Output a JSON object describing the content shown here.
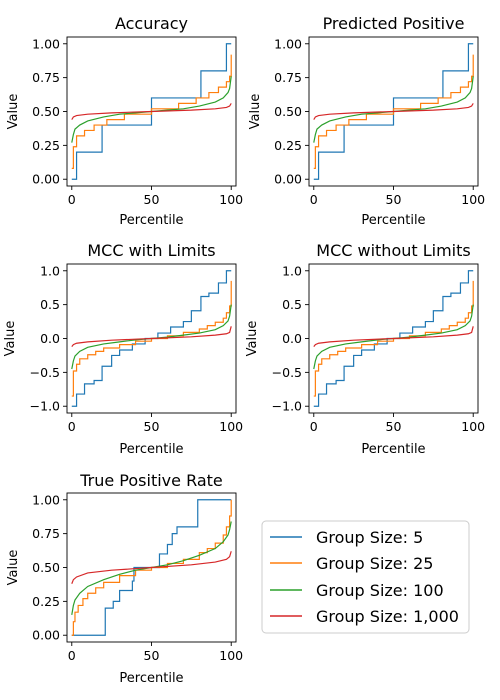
{
  "chart_data": [
    {
      "type": "line",
      "title": "Accuracy",
      "xlabel": "Percentile",
      "ylabel": "Value",
      "xlim": [
        -3,
        103
      ],
      "ylim": [
        -0.05,
        1.05
      ],
      "xticks": [
        0,
        50,
        100
      ],
      "xtick_labels": [
        "0",
        "50",
        "100"
      ],
      "yticks": [
        0.0,
        0.25,
        0.5,
        0.75,
        1.0
      ],
      "ytick_labels": [
        "0.00",
        "0.25",
        "0.50",
        "0.75",
        "1.00"
      ],
      "series": [
        {
          "name": "Group Size: 5",
          "color": "#1f77b4",
          "step": true,
          "x": [
            0,
            3,
            3,
            19,
            19,
            50,
            50,
            81,
            81,
            97,
            97,
            100
          ],
          "y": [
            0.0,
            0.0,
            0.2,
            0.2,
            0.4,
            0.4,
            0.6,
            0.6,
            0.8,
            0.8,
            1.0,
            1.0
          ]
        },
        {
          "name": "Group Size: 25",
          "color": "#ff7f0e",
          "step": true,
          "x": [
            0,
            1,
            3,
            8,
            14,
            22,
            33,
            50,
            67,
            78,
            86,
            92,
            97,
            99,
            100
          ],
          "y": [
            0.08,
            0.24,
            0.32,
            0.36,
            0.4,
            0.44,
            0.48,
            0.52,
            0.56,
            0.6,
            0.64,
            0.68,
            0.72,
            0.76,
            0.92
          ]
        },
        {
          "name": "Group Size: 100",
          "color": "#2ca02c",
          "step": false,
          "x": [
            0,
            1,
            2,
            5,
            10,
            20,
            30,
            40,
            50,
            60,
            70,
            80,
            90,
            95,
            98,
            99,
            100
          ],
          "y": [
            0.27,
            0.33,
            0.37,
            0.4,
            0.43,
            0.46,
            0.48,
            0.49,
            0.5,
            0.51,
            0.52,
            0.54,
            0.57,
            0.6,
            0.64,
            0.67,
            0.76
          ]
        },
        {
          "name": "Group Size: 1,000",
          "color": "#d62728",
          "step": false,
          "x": [
            0,
            1,
            3,
            10,
            25,
            50,
            75,
            90,
            97,
            99,
            100
          ],
          "y": [
            0.44,
            0.46,
            0.47,
            0.48,
            0.49,
            0.5,
            0.51,
            0.52,
            0.53,
            0.54,
            0.56
          ]
        }
      ]
    },
    {
      "type": "line",
      "title": "Predicted Positive",
      "xlabel": "Percentile",
      "ylabel": "Value",
      "xlim": [
        -3,
        103
      ],
      "ylim": [
        -0.05,
        1.05
      ],
      "xticks": [
        0,
        50,
        100
      ],
      "xtick_labels": [
        "0",
        "50",
        "100"
      ],
      "yticks": [
        0.0,
        0.25,
        0.5,
        0.75,
        1.0
      ],
      "ytick_labels": [
        "0.00",
        "0.25",
        "0.50",
        "0.75",
        "1.00"
      ],
      "series": [
        {
          "name": "Group Size: 5",
          "color": "#1f77b4",
          "step": true,
          "x": [
            0,
            3,
            3,
            19,
            19,
            50,
            50,
            81,
            81,
            97,
            97,
            100
          ],
          "y": [
            0.0,
            0.0,
            0.2,
            0.2,
            0.4,
            0.4,
            0.6,
            0.6,
            0.8,
            0.8,
            1.0,
            1.0
          ]
        },
        {
          "name": "Group Size: 25",
          "color": "#ff7f0e",
          "step": true,
          "x": [
            0,
            1,
            3,
            8,
            14,
            22,
            33,
            50,
            67,
            78,
            86,
            92,
            97,
            99,
            100
          ],
          "y": [
            0.08,
            0.24,
            0.32,
            0.36,
            0.4,
            0.44,
            0.48,
            0.52,
            0.56,
            0.6,
            0.64,
            0.68,
            0.72,
            0.76,
            0.92
          ]
        },
        {
          "name": "Group Size: 100",
          "color": "#2ca02c",
          "step": false,
          "x": [
            0,
            1,
            2,
            5,
            10,
            20,
            30,
            40,
            50,
            60,
            70,
            80,
            90,
            95,
            98,
            99,
            100
          ],
          "y": [
            0.27,
            0.33,
            0.37,
            0.4,
            0.43,
            0.46,
            0.48,
            0.49,
            0.5,
            0.51,
            0.52,
            0.54,
            0.57,
            0.6,
            0.64,
            0.67,
            0.76
          ]
        },
        {
          "name": "Group Size: 1,000",
          "color": "#d62728",
          "step": false,
          "x": [
            0,
            1,
            3,
            10,
            25,
            50,
            75,
            90,
            97,
            99,
            100
          ],
          "y": [
            0.44,
            0.46,
            0.47,
            0.48,
            0.49,
            0.5,
            0.51,
            0.52,
            0.53,
            0.54,
            0.56
          ]
        }
      ]
    },
    {
      "type": "line",
      "title": "MCC with Limits",
      "xlabel": "Percentile",
      "ylabel": "Value",
      "xlim": [
        -3,
        103
      ],
      "ylim": [
        -1.1,
        1.1
      ],
      "xticks": [
        0,
        50,
        100
      ],
      "xtick_labels": [
        "0",
        "50",
        "100"
      ],
      "yticks": [
        -1.0,
        -0.5,
        0.0,
        0.5,
        1.0
      ],
      "ytick_labels": [
        "−1.0",
        "−0.5",
        "0.0",
        "0.5",
        "1.0"
      ],
      "series": [
        {
          "name": "Group Size: 5",
          "color": "#1f77b4",
          "step": true,
          "x": [
            0,
            3,
            3,
            8,
            8,
            14,
            14,
            19,
            19,
            25,
            25,
            30,
            30,
            38,
            38,
            46,
            46,
            54,
            54,
            62,
            62,
            70,
            70,
            75,
            75,
            81,
            81,
            86,
            86,
            92,
            92,
            97,
            97,
            100
          ],
          "y": [
            -1.0,
            -1.0,
            -0.82,
            -0.82,
            -0.67,
            -0.67,
            -0.62,
            -0.62,
            -0.41,
            -0.41,
            -0.25,
            -0.25,
            -0.17,
            -0.17,
            -0.08,
            -0.08,
            0.0,
            0.0,
            0.08,
            0.08,
            0.17,
            0.17,
            0.25,
            0.25,
            0.41,
            0.41,
            0.62,
            0.62,
            0.67,
            0.67,
            0.82,
            0.82,
            1.0,
            1.0
          ]
        },
        {
          "name": "Group Size: 25",
          "color": "#ff7f0e",
          "step": true,
          "x": [
            0,
            1,
            3,
            5,
            10,
            15,
            20,
            30,
            40,
            50,
            60,
            70,
            80,
            85,
            90,
            95,
            97,
            99,
            100
          ],
          "y": [
            -0.85,
            -0.48,
            -0.38,
            -0.3,
            -0.24,
            -0.19,
            -0.14,
            -0.09,
            -0.04,
            0.0,
            0.04,
            0.09,
            0.14,
            0.19,
            0.24,
            0.3,
            0.38,
            0.48,
            0.85
          ]
        },
        {
          "name": "Group Size: 100",
          "color": "#2ca02c",
          "step": false,
          "x": [
            0,
            1,
            2,
            5,
            10,
            20,
            30,
            40,
            50,
            60,
            70,
            80,
            90,
            95,
            98,
            99,
            100
          ],
          "y": [
            -0.45,
            -0.33,
            -0.26,
            -0.19,
            -0.13,
            -0.08,
            -0.05,
            -0.02,
            0.0,
            0.02,
            0.05,
            0.08,
            0.13,
            0.19,
            0.26,
            0.33,
            0.5
          ]
        },
        {
          "name": "Group Size: 1,000",
          "color": "#d62728",
          "step": false,
          "x": [
            0,
            1,
            3,
            10,
            25,
            50,
            75,
            90,
            97,
            99,
            100
          ],
          "y": [
            -0.12,
            -0.09,
            -0.07,
            -0.05,
            -0.025,
            0.0,
            0.025,
            0.05,
            0.07,
            0.09,
            0.18
          ]
        }
      ]
    },
    {
      "type": "line",
      "title": "MCC without Limits",
      "xlabel": "Percentile",
      "ylabel": "Value",
      "xlim": [
        -3,
        103
      ],
      "ylim": [
        -1.1,
        1.1
      ],
      "xticks": [
        0,
        50,
        100
      ],
      "xtick_labels": [
        "0",
        "50",
        "100"
      ],
      "yticks": [
        -1.0,
        -0.5,
        0.0,
        0.5,
        1.0
      ],
      "ytick_labels": [
        "−1.0",
        "−0.5",
        "0.0",
        "0.5",
        "1.0"
      ],
      "series": [
        {
          "name": "Group Size: 5",
          "color": "#1f77b4",
          "step": true,
          "x": [
            0,
            3,
            3,
            8,
            8,
            14,
            14,
            19,
            19,
            25,
            25,
            30,
            30,
            38,
            38,
            46,
            46,
            54,
            54,
            62,
            62,
            70,
            70,
            75,
            75,
            81,
            81,
            86,
            86,
            92,
            92,
            97,
            97,
            100
          ],
          "y": [
            -1.0,
            -1.0,
            -0.82,
            -0.82,
            -0.67,
            -0.67,
            -0.62,
            -0.62,
            -0.41,
            -0.41,
            -0.25,
            -0.25,
            -0.17,
            -0.17,
            -0.08,
            -0.08,
            0.0,
            0.0,
            0.08,
            0.08,
            0.17,
            0.17,
            0.25,
            0.25,
            0.41,
            0.41,
            0.62,
            0.62,
            0.67,
            0.67,
            0.82,
            0.82,
            1.0,
            1.0
          ]
        },
        {
          "name": "Group Size: 25",
          "color": "#ff7f0e",
          "step": true,
          "x": [
            0,
            1,
            3,
            5,
            10,
            15,
            20,
            30,
            40,
            50,
            60,
            70,
            80,
            85,
            90,
            95,
            97,
            99,
            100
          ],
          "y": [
            -0.85,
            -0.48,
            -0.38,
            -0.3,
            -0.24,
            -0.19,
            -0.14,
            -0.09,
            -0.04,
            0.0,
            0.04,
            0.09,
            0.14,
            0.19,
            0.24,
            0.3,
            0.38,
            0.48,
            0.85
          ]
        },
        {
          "name": "Group Size: 100",
          "color": "#2ca02c",
          "step": false,
          "x": [
            0,
            1,
            2,
            5,
            10,
            20,
            30,
            40,
            50,
            60,
            70,
            80,
            90,
            95,
            98,
            99,
            100
          ],
          "y": [
            -0.45,
            -0.33,
            -0.26,
            -0.19,
            -0.13,
            -0.08,
            -0.05,
            -0.02,
            0.0,
            0.02,
            0.05,
            0.08,
            0.13,
            0.19,
            0.26,
            0.33,
            0.5
          ]
        },
        {
          "name": "Group Size: 1,000",
          "color": "#d62728",
          "step": false,
          "x": [
            0,
            1,
            3,
            10,
            25,
            50,
            75,
            90,
            97,
            99,
            100
          ],
          "y": [
            -0.12,
            -0.09,
            -0.07,
            -0.05,
            -0.025,
            0.0,
            0.025,
            0.05,
            0.07,
            0.09,
            0.18
          ]
        }
      ]
    },
    {
      "type": "line",
      "title": "True Positive Rate",
      "xlabel": "Percentile",
      "ylabel": "Value",
      "xlim": [
        -3,
        103
      ],
      "ylim": [
        -0.05,
        1.05
      ],
      "xticks": [
        0,
        50,
        100
      ],
      "xtick_labels": [
        "0",
        "50",
        "100"
      ],
      "yticks": [
        0.0,
        0.25,
        0.5,
        0.75,
        1.0
      ],
      "ytick_labels": [
        "0.00",
        "0.25",
        "0.50",
        "0.75",
        "1.00"
      ],
      "series": [
        {
          "name": "Group Size: 5",
          "color": "#1f77b4",
          "step": true,
          "x": [
            0,
            21,
            21,
            26,
            26,
            30,
            30,
            38,
            38,
            39,
            39,
            46,
            46,
            55,
            55,
            60,
            60,
            63,
            63,
            66,
            66,
            72,
            72,
            77,
            77,
            79,
            79,
            100
          ],
          "y": [
            0.0,
            0.0,
            0.2,
            0.2,
            0.25,
            0.25,
            0.33,
            0.33,
            0.4,
            0.4,
            0.5,
            0.5,
            0.5,
            0.5,
            0.6,
            0.6,
            0.67,
            0.67,
            0.75,
            0.75,
            0.8,
            0.8,
            0.8,
            0.8,
            0.8,
            0.8,
            1.0,
            1.0
          ]
        },
        {
          "name": "Group Size: 25",
          "color": "#ff7f0e",
          "step": true,
          "x": [
            0,
            1,
            2,
            4,
            7,
            10,
            15,
            20,
            30,
            40,
            50,
            60,
            70,
            80,
            85,
            90,
            95,
            97,
            99,
            100
          ],
          "y": [
            0.0,
            0.1,
            0.17,
            0.22,
            0.27,
            0.31,
            0.35,
            0.39,
            0.44,
            0.48,
            0.5,
            0.53,
            0.56,
            0.61,
            0.64,
            0.68,
            0.74,
            0.8,
            0.88,
            1.0
          ]
        },
        {
          "name": "Group Size: 100",
          "color": "#2ca02c",
          "step": false,
          "x": [
            0,
            1,
            2,
            5,
            10,
            20,
            30,
            40,
            50,
            60,
            70,
            80,
            90,
            95,
            98,
            99,
            100
          ],
          "y": [
            0.15,
            0.22,
            0.26,
            0.31,
            0.36,
            0.41,
            0.45,
            0.48,
            0.5,
            0.52,
            0.55,
            0.59,
            0.64,
            0.69,
            0.74,
            0.78,
            0.84
          ]
        },
        {
          "name": "Group Size: 1,000",
          "color": "#d62728",
          "step": false,
          "x": [
            0,
            1,
            3,
            10,
            25,
            50,
            75,
            90,
            97,
            99,
            100
          ],
          "y": [
            0.38,
            0.41,
            0.43,
            0.46,
            0.48,
            0.5,
            0.52,
            0.54,
            0.56,
            0.58,
            0.62
          ]
        }
      ]
    }
  ],
  "legend": {
    "entries": [
      {
        "label": "Group Size: 5",
        "color": "#1f77b4"
      },
      {
        "label": "Group Size: 25",
        "color": "#ff7f0e"
      },
      {
        "label": "Group Size: 100",
        "color": "#2ca02c"
      },
      {
        "label": "Group Size: 1,000",
        "color": "#d62728"
      }
    ]
  }
}
